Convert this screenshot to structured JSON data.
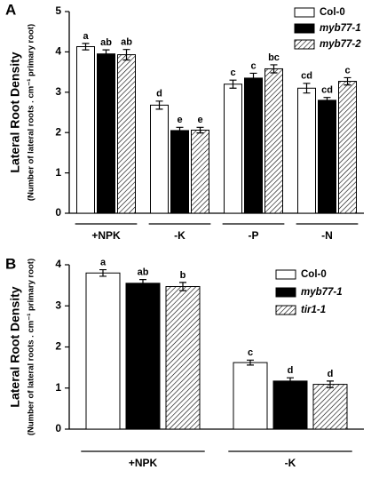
{
  "chart_data": [
    {
      "type": "bar",
      "panel": "A",
      "title": "Lateral Root Density",
      "subtitle": "(Number of lateral roots . cm⁻¹ primary root)",
      "categories": [
        "+NPK",
        "-K",
        "-P",
        "-N"
      ],
      "series": [
        {
          "name": "Col-0",
          "color": "#ffffff",
          "hatch": false,
          "italic": false,
          "values": [
            4.13,
            2.68,
            3.2,
            3.1
          ],
          "errors": [
            0.08,
            0.1,
            0.1,
            0.12
          ],
          "labels": [
            "a",
            "d",
            "c",
            "cd"
          ]
        },
        {
          "name": "myb77-1",
          "color": "#000000",
          "hatch": false,
          "italic": true,
          "values": [
            3.95,
            2.05,
            3.35,
            2.8
          ],
          "errors": [
            0.1,
            0.08,
            0.12,
            0.07
          ],
          "labels": [
            "ab",
            "e",
            "c",
            "cd"
          ]
        },
        {
          "name": "myb77-2",
          "color": "#ffffff",
          "hatch": true,
          "italic": true,
          "values": [
            3.93,
            2.06,
            3.58,
            3.27
          ],
          "errors": [
            0.13,
            0.07,
            0.1,
            0.09
          ],
          "labels": [
            "ab",
            "e",
            "bc",
            "c"
          ]
        }
      ],
      "ylim": [
        0,
        5
      ],
      "yticks": [
        0,
        1,
        2,
        3,
        4,
        5
      ],
      "grid": false,
      "legend": "top-right"
    },
    {
      "type": "bar",
      "panel": "B",
      "title": "Lateral Root Density",
      "subtitle": "(Number of lateral roots . cm⁻¹ primary root)",
      "categories": [
        "+NPK",
        "-K"
      ],
      "series": [
        {
          "name": "Col-0",
          "color": "#ffffff",
          "hatch": false,
          "italic": false,
          "values": [
            3.8,
            1.62
          ],
          "errors": [
            0.08,
            0.06
          ],
          "labels": [
            "a",
            "c"
          ]
        },
        {
          "name": "myb77-1",
          "color": "#000000",
          "hatch": false,
          "italic": true,
          "values": [
            3.55,
            1.17
          ],
          "errors": [
            0.09,
            0.08
          ],
          "labels": [
            "ab",
            "d"
          ]
        },
        {
          "name": "tir1-1",
          "color": "#ffffff",
          "hatch": true,
          "italic": true,
          "values": [
            3.47,
            1.09
          ],
          "errors": [
            0.1,
            0.08
          ],
          "labels": [
            "b",
            "d"
          ]
        }
      ],
      "ylim": [
        0,
        4
      ],
      "yticks": [
        0,
        1,
        2,
        3,
        4
      ],
      "grid": false,
      "legend": "top-right"
    }
  ]
}
